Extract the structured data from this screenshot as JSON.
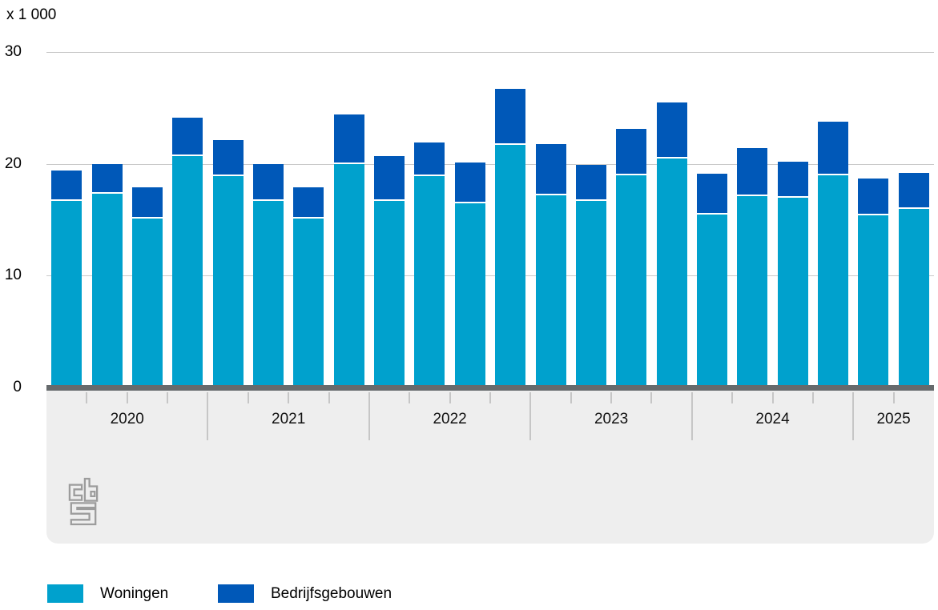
{
  "chart_data": {
    "type": "bar",
    "stacked": true,
    "unit_label": "x 1 000",
    "ylim": [
      0,
      30
    ],
    "y_ticks": [
      0,
      10,
      20,
      30
    ],
    "grid": true,
    "legend_position": "bottom",
    "years": [
      {
        "label": "2020",
        "quarters": 4
      },
      {
        "label": "2021",
        "quarters": 4
      },
      {
        "label": "2022",
        "quarters": 4
      },
      {
        "label": "2023",
        "quarters": 4
      },
      {
        "label": "2024",
        "quarters": 4
      },
      {
        "label": "2025",
        "quarters": 2
      }
    ],
    "series": [
      {
        "name": "Woningen",
        "color": "#00a1cd",
        "values": [
          16.7,
          17.3,
          15.1,
          20.7,
          18.9,
          16.7,
          15.1,
          20.0,
          16.7,
          18.9,
          16.5,
          21.7,
          17.2,
          16.7,
          19.0,
          20.5,
          15.5,
          17.1,
          17.0,
          19.0,
          15.4,
          16.0
        ]
      },
      {
        "name": "Bedrijfsgebouwen",
        "color": "#0058b8",
        "values": [
          2.7,
          2.7,
          2.8,
          3.4,
          3.2,
          3.3,
          2.8,
          4.4,
          4.0,
          3.0,
          3.6,
          5.0,
          4.6,
          3.2,
          4.1,
          5.0,
          3.6,
          4.3,
          3.2,
          4.8,
          3.3,
          3.2
        ]
      }
    ]
  },
  "footer": {
    "logo": "cbs-logo"
  }
}
